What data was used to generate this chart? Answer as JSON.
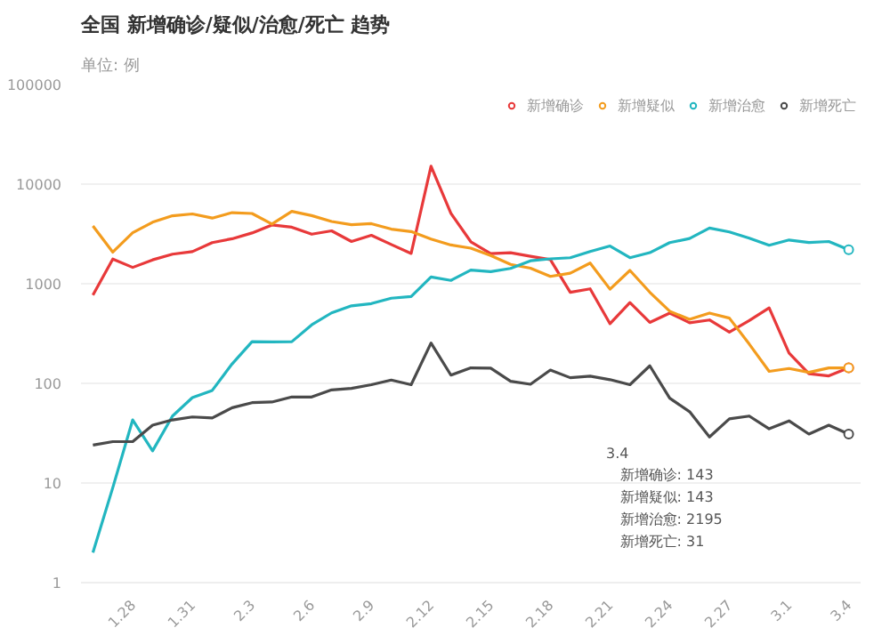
{
  "chart_data": {
    "type": "line",
    "title": "全国 新增确诊/疑似/治愈/死亡 趋势",
    "subtitle": "单位: 例",
    "categories": [
      null,
      null,
      "1.28",
      null,
      null,
      "1.31",
      null,
      null,
      "2.3",
      null,
      null,
      "2.6",
      null,
      null,
      "2.9",
      null,
      null,
      "2.12",
      null,
      null,
      "2.15",
      null,
      null,
      "2.18",
      null,
      null,
      "2.21",
      null,
      null,
      "2.24",
      null,
      null,
      "2.27",
      null,
      null,
      "3.1",
      null,
      null,
      "3.4"
    ],
    "ylim": [
      1,
      100000
    ],
    "yticks": [
      1,
      10,
      100,
      1000,
      10000,
      100000
    ],
    "log": "y",
    "grid": "y",
    "legend": "top right",
    "series": [
      {
        "name": "新增确诊",
        "color": "#e8393a",
        "values": [
          769,
          1771,
          1459,
          1737,
          1982,
          2102,
          2590,
          2829,
          3235,
          3887,
          3694,
          3143,
          3399,
          2656,
          3062,
          2478,
          2015,
          15152,
          5090,
          2641,
          2009,
          2048,
          1886,
          1749,
          820,
          889,
          397,
          648,
          409,
          508,
          406,
          433,
          327,
          427,
          573,
          202,
          125,
          119,
          143
        ]
      },
      {
        "name": "新增疑似",
        "color": "#f39c1e",
        "values": [
          3806,
          2077,
          3248,
          4148,
          4812,
          5019,
          4562,
          5173,
          5072,
          3971,
          5328,
          4833,
          4214,
          3916,
          4008,
          3536,
          3342,
          2807,
          2450,
          2277,
          1918,
          1563,
          1432,
          1185,
          1277,
          1614,
          882,
          1361,
          822,
          530,
          439,
          508,
          452,
          248,
          132,
          141,
          129,
          143,
          143
        ]
      },
      {
        "name": "新增治愈",
        "color": "#22b6c0",
        "values": [
          2,
          9,
          43,
          21,
          47,
          72,
          85,
          157,
          262,
          261,
          262,
          387,
          510,
          600,
          632,
          716,
          744,
          1171,
          1081,
          1373,
          1323,
          1425,
          1701,
          1779,
          1824,
          2109,
          2393,
          1826,
          2051,
          2589,
          2843,
          3622,
          3314,
          2873,
          2434,
          2750,
          2592,
          2654,
          2195
        ]
      },
      {
        "name": "新增死亡",
        "color": "#4a4a4a",
        "values": [
          24,
          26,
          26,
          38,
          43,
          46,
          45,
          57,
          64,
          65,
          73,
          73,
          86,
          89,
          97,
          108,
          97,
          254,
          121,
          143,
          142,
          105,
          98,
          136,
          114,
          118,
          109,
          97,
          150,
          71,
          52,
          29,
          44,
          47,
          35,
          42,
          31,
          38,
          31
        ]
      }
    ],
    "annotations": [
      "3.4",
      "新增确诊: 143",
      "新增疑似: 143",
      "新增治愈: 2195",
      "新增死亡: 31"
    ]
  }
}
